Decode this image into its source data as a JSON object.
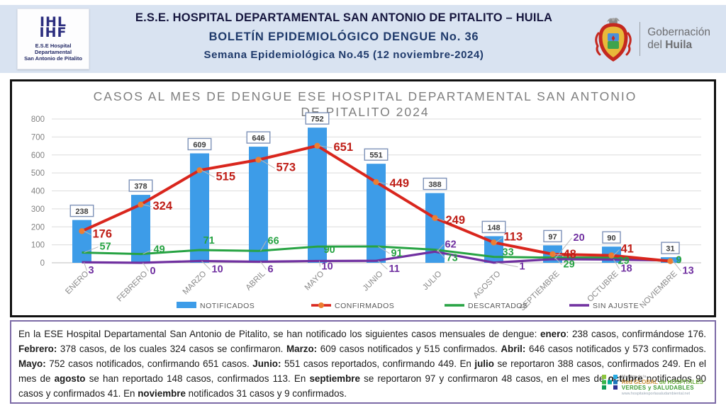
{
  "header": {
    "hospital_logo": {
      "glyph_line1": "IHL",
      "glyph_line2": "IHF",
      "caption_line1": "E.S.E Hospital Departamental",
      "caption_line2": "San Antonio de Pitalito"
    },
    "title_line1": "E.S.E. HOSPITAL DEPARTAMENTAL SAN ANTONIO DE PITALITO – HUILA",
    "title_line2": "BOLETÍN EPIDEMIOLÓGICO DENGUE No. 36",
    "title_line3": "Semana Epidemiológica No.45 (12 noviembre-2024)",
    "gobernacion_logo": {
      "line1": "Gobernación",
      "line2_prefix": "del ",
      "line2_bold": "Huila"
    }
  },
  "chart_data": {
    "type": "bar",
    "title_line1": "CASOS AL MES DE DENGUE ESE HOSPITAL DEPARTAMENTAL SAN ANTONIO",
    "title_line2": "DE PITALITO 2024",
    "categories": [
      "ENERO",
      "FEBRERO",
      "MARZO",
      "ABRIL",
      "MAYO",
      "JUNIO",
      "JULIO",
      "AGOSTO",
      "SEPTIEMBRE",
      "OCTUBRE",
      "NOVIEMBRE"
    ],
    "series": [
      {
        "name": "NOTIFICADOS",
        "type": "bar",
        "color": "#3d9ce8",
        "values": [
          238,
          378,
          609,
          646,
          752,
          551,
          388,
          148,
          97,
          90,
          31
        ]
      },
      {
        "name": "CONFIRMADOS",
        "type": "line",
        "color": "#d9261d",
        "marker_color": "#ed7d31",
        "label_color": "#bf1e17",
        "values": [
          176,
          324,
          515,
          573,
          651,
          449,
          249,
          113,
          48,
          41,
          9
        ]
      },
      {
        "name": "DESCARTADOS",
        "type": "line",
        "color": "#27a343",
        "label_color": "#27a343",
        "values": [
          57,
          49,
          71,
          66,
          90,
          91,
          73,
          33,
          29,
          29,
          9
        ]
      },
      {
        "name": "SIN AJUSTE",
        "type": "line",
        "color": "#7030a0",
        "label_color": "#7030a0",
        "values": [
          3,
          0,
          10,
          6,
          10,
          11,
          62,
          1,
          20,
          18,
          13
        ]
      }
    ],
    "ylim": [
      0,
      800
    ],
    "ytick_step": 100,
    "grid": true,
    "legend_position": "bottom"
  },
  "summary": {
    "segments": [
      {
        "text": "En la ESE Hospital Departamental San Antonio de Pitalito, se han notificado los siguientes casos mensuales de dengue: ",
        "bold": false
      },
      {
        "text": "enero",
        "bold": true
      },
      {
        "text": ": 238 casos,  confirmándose 176. ",
        "bold": false
      },
      {
        "text": "Febrero:",
        "bold": true
      },
      {
        "text": " 378 casos, de los cuales 324 casos se confirmaron. ",
        "bold": false
      },
      {
        "text": "Marzo:",
        "bold": true
      },
      {
        "text": " 609 casos notificados  y 515 confirmados. ",
        "bold": false
      },
      {
        "text": "Abril:",
        "bold": true
      },
      {
        "text": " 646 casos notificados y 573 confirmados. ",
        "bold": false
      },
      {
        "text": "Mayo:",
        "bold": true
      },
      {
        "text": " 752 casos notificados, confirmando  651 casos. ",
        "bold": false
      },
      {
        "text": "Junio:",
        "bold": true
      },
      {
        "text": " 551 casos reportados, confirmando 449. En ",
        "bold": false
      },
      {
        "text": "julio",
        "bold": true
      },
      {
        "text": " se reportaron 388 casos, confirmados 249. En el mes de ",
        "bold": false
      },
      {
        "text": "agosto",
        "bold": true
      },
      {
        "text": " se han reportado 148 casos, confirmados 113. En ",
        "bold": false
      },
      {
        "text": "septiembre",
        "bold": true
      },
      {
        "text": " se reportaron 97 y confirmaron 48 casos, en el mes de ",
        "bold": false
      },
      {
        "text": "octubre",
        "bold": true
      },
      {
        "text": " notificados 90 casos y confirmados 41. En ",
        "bold": false
      },
      {
        "text": "noviembre",
        "bold": true
      },
      {
        "text": " notificados 31 casos y 9 confirmados.",
        "bold": false
      }
    ]
  },
  "footer_logo": {
    "line1": "Miembro de la",
    "line2_part1": "Red GLOBAL",
    "line2_part2": " de HOSPITALES",
    "line3": "VERDES y SALUDABLES",
    "line4": "www.hospitalesporlasaludambiental.net"
  }
}
